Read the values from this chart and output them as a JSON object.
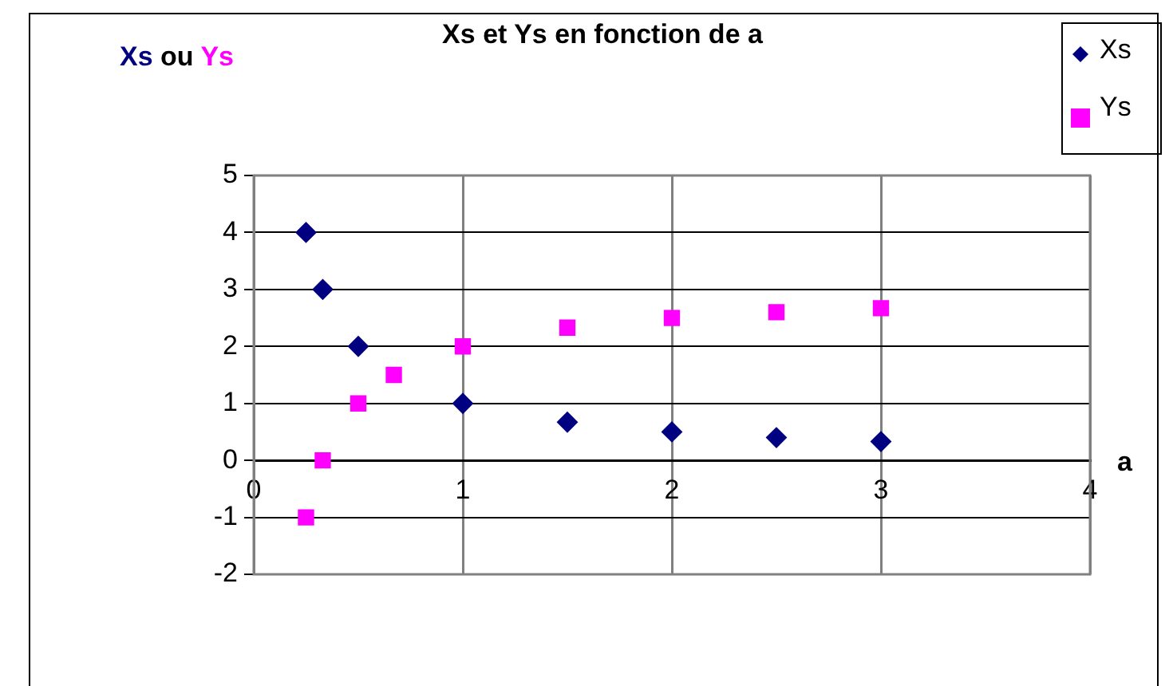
{
  "chart_data": {
    "type": "scatter",
    "title": "Xs et Ys en fonction de a",
    "xlabel": "a",
    "ylabel": "Xs ou Ys",
    "xlim": [
      0,
      4
    ],
    "xticks": [
      0,
      1,
      2,
      3,
      4
    ],
    "ylim": [
      -2,
      5
    ],
    "yticks": [
      -2,
      -1,
      0,
      1,
      2,
      3,
      4,
      5
    ],
    "grid": true,
    "legend": "top right",
    "series": [
      {
        "name": "Xs",
        "color": "#000080",
        "marker": "diamond",
        "x": [
          0.25,
          0.33,
          0.5,
          1,
          1.5,
          2,
          2.5,
          3
        ],
        "values": [
          4,
          3,
          2,
          1,
          0.67,
          0.5,
          0.4,
          0.33
        ]
      },
      {
        "name": "Ys",
        "color": "#ff00ff",
        "marker": "square",
        "x": [
          0.25,
          0.33,
          0.5,
          0.67,
          1,
          1.5,
          2,
          2.5,
          3
        ],
        "values": [
          -1,
          0,
          1,
          1.5,
          2,
          2.33,
          2.5,
          2.6,
          2.67
        ]
      }
    ]
  }
}
